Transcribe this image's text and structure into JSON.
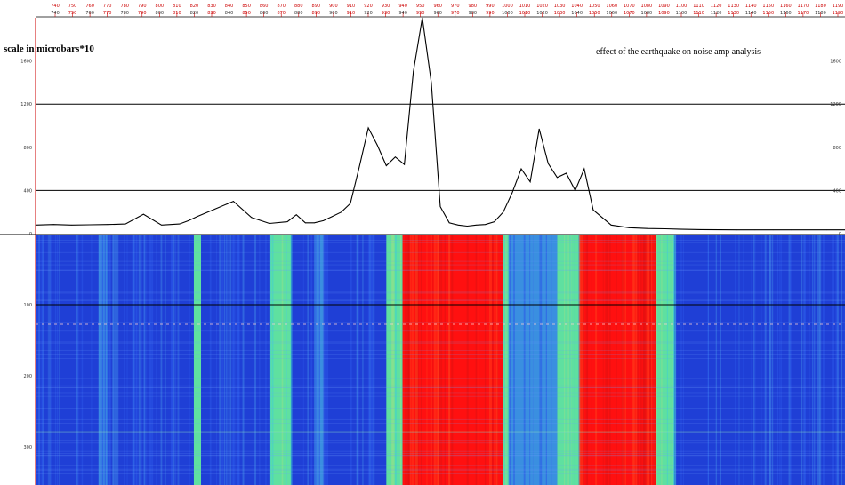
{
  "chart_data": [
    {
      "type": "line",
      "scale_label": "scale in microbars*10",
      "annotation": "effect of the earthquake on noise amp analysis",
      "ylim": [
        0,
        2000
      ],
      "y_ticks": [
        "0",
        "400",
        "800",
        "1200",
        "1600"
      ],
      "reference_lines_y": [
        400,
        1200
      ],
      "x_range": [
        740,
        1190
      ],
      "x_ticks_top": [
        "740",
        "750",
        "760",
        "770",
        "780",
        "790",
        "800",
        "810",
        "820",
        "830",
        "840",
        "850",
        "860",
        "870",
        "880",
        "890",
        "900",
        "910",
        "920",
        "930",
        "940",
        "950",
        "960",
        "970",
        "980",
        "990",
        "1000",
        "1010",
        "1020",
        "1030",
        "1040",
        "1050",
        "1060",
        "1070",
        "1080",
        "1090",
        "1100",
        "1110",
        "1120",
        "1130",
        "1140",
        "1150",
        "1160",
        "1170",
        "1180",
        "1190"
      ],
      "x": [
        740,
        750,
        760,
        770,
        780,
        790,
        800,
        810,
        820,
        825,
        830,
        840,
        850,
        860,
        870,
        880,
        885,
        890,
        895,
        900,
        905,
        910,
        915,
        920,
        925,
        930,
        935,
        940,
        945,
        950,
        955,
        960,
        965,
        970,
        975,
        980,
        985,
        990,
        995,
        1000,
        1005,
        1010,
        1015,
        1020,
        1025,
        1030,
        1035,
        1040,
        1045,
        1050,
        1060,
        1070,
        1080,
        1090,
        1100,
        1110,
        1120,
        1130,
        1140,
        1150,
        1160,
        1170,
        1180,
        1190
      ],
      "values": [
        80,
        85,
        80,
        82,
        85,
        90,
        180,
        80,
        90,
        120,
        160,
        230,
        300,
        150,
        95,
        110,
        175,
        100,
        100,
        120,
        160,
        200,
        280,
        620,
        980,
        820,
        630,
        710,
        640,
        1500,
        2000,
        1400,
        250,
        100,
        80,
        70,
        80,
        85,
        110,
        200,
        380,
        600,
        480,
        970,
        650,
        520,
        560,
        400,
        600,
        220,
        80,
        55,
        48,
        45,
        40,
        38,
        36,
        35,
        35,
        35,
        35,
        35,
        35,
        35
      ]
    },
    {
      "type": "heatmap",
      "y_ticks": [
        "100",
        "200",
        "300"
      ],
      "colors": {
        "low": "#1f3fd6",
        "mid": "#3a8fe0",
        "high_mid": "#5fe0a0",
        "high": "#ff1010"
      },
      "intensity_profile": [
        {
          "from": 740,
          "to": 775,
          "level": 0.15
        },
        {
          "from": 775,
          "to": 780,
          "level": 0.25
        },
        {
          "from": 780,
          "to": 828,
          "level": 0.15
        },
        {
          "from": 828,
          "to": 832,
          "level": 0.45
        },
        {
          "from": 832,
          "to": 870,
          "level": 0.15
        },
        {
          "from": 870,
          "to": 882,
          "level": 0.5
        },
        {
          "from": 882,
          "to": 895,
          "level": 0.2
        },
        {
          "from": 895,
          "to": 900,
          "level": 0.35
        },
        {
          "from": 900,
          "to": 935,
          "level": 0.18
        },
        {
          "from": 935,
          "to": 944,
          "level": 0.5
        },
        {
          "from": 944,
          "to": 1000,
          "level": 1.0
        },
        {
          "from": 1000,
          "to": 1003,
          "level": 0.55
        },
        {
          "from": 1003,
          "to": 1030,
          "level": 0.25
        },
        {
          "from": 1030,
          "to": 1042,
          "level": 0.5
        },
        {
          "from": 1042,
          "to": 1085,
          "level": 0.9
        },
        {
          "from": 1085,
          "to": 1095,
          "level": 0.55
        },
        {
          "from": 1095,
          "to": 1190,
          "level": 0.12
        }
      ]
    }
  ]
}
